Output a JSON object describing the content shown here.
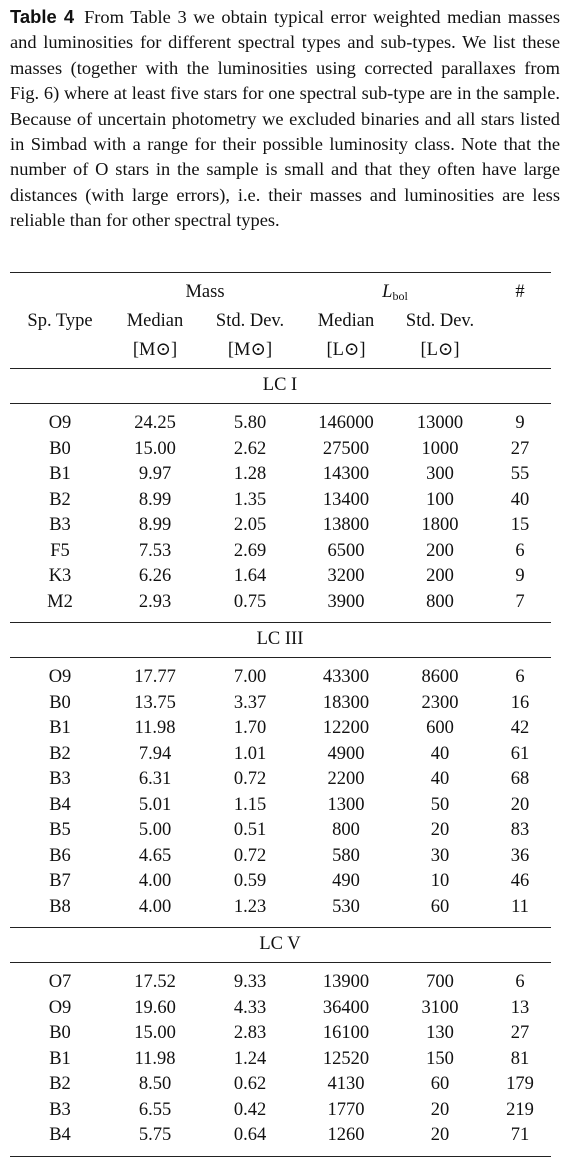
{
  "caption": {
    "label": "Table 4",
    "text": "From Table 3 we obtain typical error weighted median masses and luminosities for different spectral types and sub-types. We list these masses (together with the luminosities using corrected parallaxes from Fig. 6) where at least five stars for one spectral sub-type are in the sample. Because of uncertain photometry we excluded binaries and all stars listed in Simbad with a range for their possible luminosity class. Note that the number of O stars in the sample is small and that they often have large distances (with large errors), i.e. their masses and luminosities are less reliable than for other spectral types."
  },
  "table": {
    "group_headers": {
      "mass": "Mass",
      "lbol": {
        "symbol": "L",
        "subscript": "bol"
      },
      "count": "#"
    },
    "columns": [
      "Sp. Type",
      "Median",
      "Std. Dev.",
      "Median",
      "Std. Dev."
    ],
    "units": [
      "[M⊙]",
      "[M⊙]",
      "[L⊙]",
      "[L⊙]"
    ],
    "sections": [
      {
        "label": "LC I",
        "rows": [
          [
            "O9",
            "24.25",
            "5.80",
            "146000",
            "13000",
            "9"
          ],
          [
            "B0",
            "15.00",
            "2.62",
            "27500",
            "1000",
            "27"
          ],
          [
            "B1",
            "9.97",
            "1.28",
            "14300",
            "300",
            "55"
          ],
          [
            "B2",
            "8.99",
            "1.35",
            "13400",
            "100",
            "40"
          ],
          [
            "B3",
            "8.99",
            "2.05",
            "13800",
            "1800",
            "15"
          ],
          [
            "F5",
            "7.53",
            "2.69",
            "6500",
            "200",
            "6"
          ],
          [
            "K3",
            "6.26",
            "1.64",
            "3200",
            "200",
            "9"
          ],
          [
            "M2",
            "2.93",
            "0.75",
            "3900",
            "800",
            "7"
          ]
        ]
      },
      {
        "label": "LC III",
        "rows": [
          [
            "O9",
            "17.77",
            "7.00",
            "43300",
            "8600",
            "6"
          ],
          [
            "B0",
            "13.75",
            "3.37",
            "18300",
            "2300",
            "16"
          ],
          [
            "B1",
            "11.98",
            "1.70",
            "12200",
            "600",
            "42"
          ],
          [
            "B2",
            "7.94",
            "1.01",
            "4900",
            "40",
            "61"
          ],
          [
            "B3",
            "6.31",
            "0.72",
            "2200",
            "40",
            "68"
          ],
          [
            "B4",
            "5.01",
            "1.15",
            "1300",
            "50",
            "20"
          ],
          [
            "B5",
            "5.00",
            "0.51",
            "800",
            "20",
            "83"
          ],
          [
            "B6",
            "4.65",
            "0.72",
            "580",
            "30",
            "36"
          ],
          [
            "B7",
            "4.00",
            "0.59",
            "490",
            "10",
            "46"
          ],
          [
            "B8",
            "4.00",
            "1.23",
            "530",
            "60",
            "11"
          ]
        ]
      },
      {
        "label": "LC V",
        "rows": [
          [
            "O7",
            "17.52",
            "9.33",
            "13900",
            "700",
            "6"
          ],
          [
            "O9",
            "19.60",
            "4.33",
            "36400",
            "3100",
            "13"
          ],
          [
            "B0",
            "15.00",
            "2.83",
            "16100",
            "130",
            "27"
          ],
          [
            "B1",
            "11.98",
            "1.24",
            "12520",
            "150",
            "81"
          ],
          [
            "B2",
            "8.50",
            "0.62",
            "4130",
            "60",
            "179"
          ],
          [
            "B3",
            "6.55",
            "0.42",
            "1770",
            "20",
            "219"
          ],
          [
            "B4",
            "5.75",
            "0.64",
            "1260",
            "20",
            "71"
          ]
        ]
      }
    ]
  }
}
